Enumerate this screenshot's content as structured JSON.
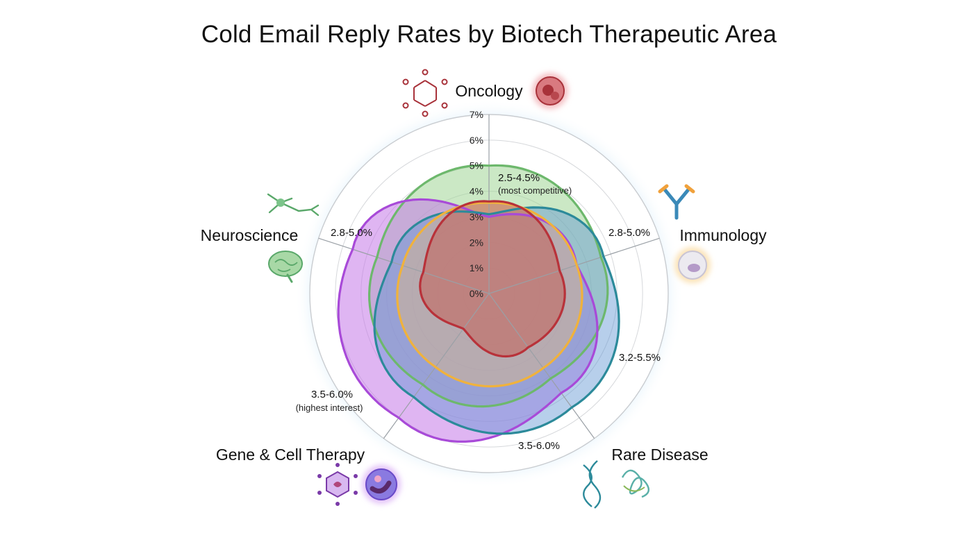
{
  "title": "Cold Email Reply Rates by Biotech Therapeutic Area",
  "chart_data": {
    "type": "radar",
    "title": "Cold Email Reply Rates by Biotech Therapeutic Area",
    "ylim": [
      0,
      7
    ],
    "ticks": [
      "0%",
      "1%",
      "2%",
      "3%",
      "4%",
      "5%",
      "6%",
      "7%"
    ],
    "grid": true,
    "axes": [
      {
        "name": "Oncology",
        "range": "2.5-4.5%",
        "note": "(most competitive)",
        "low": 2.5,
        "high": 4.5,
        "color": "#b8323a",
        "icons": [
          "molecule-icon",
          "cancer-cell-icon"
        ]
      },
      {
        "name": "Immunology",
        "range": "2.8-5.0%",
        "note": "",
        "low": 2.8,
        "high": 5.0,
        "color": "#f0b23c",
        "icons": [
          "antibody-icon",
          "immune-cell-icon"
        ]
      },
      {
        "name": "Rare Disease",
        "range": "3.2-5.5%",
        "note": "",
        "low": 3.2,
        "high": 5.5,
        "color": "#2c8a9a",
        "icons": [
          "dna-icon",
          "protein-icon"
        ]
      },
      {
        "name": "Gene & Cell Therapy",
        "range": "3.5-6.0%",
        "note": "(highest interest)",
        "low": 3.5,
        "high": 6.0,
        "color": "#a84ad8",
        "icons": [
          "virus-vector-icon",
          "cell-icon"
        ]
      },
      {
        "name": "Neuroscience",
        "range": "2.8-5.0%",
        "note": "",
        "low": 2.8,
        "high": 5.0,
        "color": "#6db86c",
        "icons": [
          "neuron-icon",
          "brain-icon"
        ]
      }
    ],
    "extra_range_label": "3.5-6.0%"
  }
}
